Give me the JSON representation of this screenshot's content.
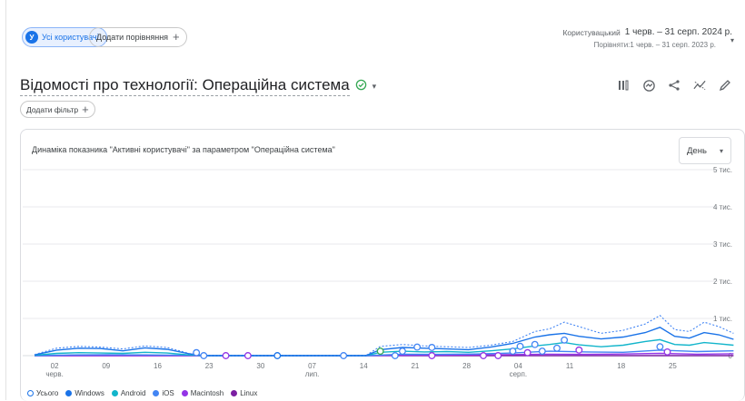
{
  "segment": {
    "letter": "У",
    "label": "Усі користувачі"
  },
  "compare": {
    "label": "Додати порівняння",
    "plus": "+"
  },
  "dates": {
    "preset": "Користувацький",
    "range": "1 черв. – 31 серп. 2024 р.",
    "compare_range": "Порівняти:1 черв. – 31 серп. 2023 р.",
    "caret": "▾"
  },
  "title": {
    "text": "Відомості про технології: Операційна система",
    "check": "⊘",
    "caret": "▾"
  },
  "toolbar": {
    "icons": [
      "columns-icon",
      "insights-icon",
      "share-icon",
      "trend-icon",
      "edit-icon"
    ]
  },
  "filter": {
    "label": "Додати фільтр",
    "plus": "+"
  },
  "card": {
    "title": "Динаміка показника \"Активні користувачі\" за параметром \"Операційна система\"",
    "period": "День",
    "period_caret": "▾"
  },
  "legend": [
    {
      "label": "Усього",
      "color": "#1a73e8",
      "hollow": true
    },
    {
      "label": "Windows",
      "color": "#1a73e8",
      "hollow": false
    },
    {
      "label": "Android",
      "color": "#12b5cb",
      "hollow": false
    },
    {
      "label": "iOS",
      "color": "#4285f4",
      "hollow": false
    },
    {
      "label": "Macintosh",
      "color": "#9334e6",
      "hollow": false
    },
    {
      "label": "Linux",
      "color": "#7b1fa2",
      "hollow": false
    }
  ],
  "chart_data": {
    "type": "line",
    "title": "Динаміка показника \"Активні користувачі\" за параметром \"Операційна система\"",
    "x_tick_labels": [
      {
        "day": 1,
        "label": "02",
        "sub": "черв."
      },
      {
        "day": 8,
        "label": "09",
        "sub": ""
      },
      {
        "day": 15,
        "label": "16",
        "sub": ""
      },
      {
        "day": 22,
        "label": "23",
        "sub": ""
      },
      {
        "day": 29,
        "label": "30",
        "sub": ""
      },
      {
        "day": 36,
        "label": "07",
        "sub": "лип."
      },
      {
        "day": 43,
        "label": "14",
        "sub": ""
      },
      {
        "day": 50,
        "label": "21",
        "sub": ""
      },
      {
        "day": 57,
        "label": "28",
        "sub": ""
      },
      {
        "day": 64,
        "label": "04",
        "sub": "серп."
      },
      {
        "day": 71,
        "label": "11",
        "sub": ""
      },
      {
        "day": 78,
        "label": "18",
        "sub": ""
      },
      {
        "day": 85,
        "label": "25",
        "sub": ""
      }
    ],
    "y_ticks": [
      {
        "value": 0,
        "label": "0"
      },
      {
        "value": 1000,
        "label": "1 тис."
      },
      {
        "value": 2000,
        "label": "2 тис."
      },
      {
        "value": 3000,
        "label": "3 тис."
      },
      {
        "value": 4000,
        "label": "4 тис."
      },
      {
        "value": 5000,
        "label": "5 тис."
      }
    ],
    "xlim": [
      0,
      91
    ],
    "ylim": [
      0,
      5000
    ],
    "grid": true,
    "legend_position": "bottom-left",
    "series": [
      {
        "name": "Усього",
        "color": "#4285f4",
        "dashed": true,
        "points": [
          [
            0,
            30
          ],
          [
            3,
            200
          ],
          [
            6,
            250
          ],
          [
            9,
            230
          ],
          [
            12,
            180
          ],
          [
            15,
            260
          ],
          [
            18,
            220
          ],
          [
            21,
            60
          ],
          [
            23,
            0
          ],
          [
            45,
            0
          ],
          [
            47,
            250
          ],
          [
            50,
            300
          ],
          [
            53,
            260
          ],
          [
            56,
            240
          ],
          [
            59,
            220
          ],
          [
            62,
            280
          ],
          [
            65,
            380
          ],
          [
            68,
            650
          ],
          [
            70,
            720
          ],
          [
            72,
            900
          ],
          [
            74,
            780
          ],
          [
            77,
            600
          ],
          [
            80,
            680
          ],
          [
            83,
            850
          ],
          [
            85,
            1080
          ],
          [
            87,
            700
          ],
          [
            89,
            650
          ],
          [
            91,
            900
          ],
          [
            93,
            780
          ],
          [
            95,
            600
          ]
        ]
      },
      {
        "name": "Windows",
        "color": "#1a73e8",
        "dashed": false,
        "points": [
          [
            0,
            20
          ],
          [
            3,
            150
          ],
          [
            6,
            200
          ],
          [
            9,
            190
          ],
          [
            12,
            130
          ],
          [
            15,
            210
          ],
          [
            18,
            170
          ],
          [
            21,
            50
          ],
          [
            23,
            0
          ],
          [
            45,
            0
          ],
          [
            47,
            160
          ],
          [
            50,
            220
          ],
          [
            53,
            200
          ],
          [
            56,
            180
          ],
          [
            59,
            160
          ],
          [
            62,
            230
          ],
          [
            65,
            330
          ],
          [
            68,
            500
          ],
          [
            70,
            560
          ],
          [
            72,
            600
          ],
          [
            74,
            520
          ],
          [
            77,
            450
          ],
          [
            80,
            500
          ],
          [
            83,
            620
          ],
          [
            85,
            760
          ],
          [
            87,
            520
          ],
          [
            89,
            470
          ],
          [
            91,
            620
          ],
          [
            93,
            560
          ],
          [
            95,
            440
          ]
        ]
      },
      {
        "name": "Android",
        "color": "#12b5cb",
        "dashed": false,
        "points": [
          [
            0,
            10
          ],
          [
            3,
            60
          ],
          [
            6,
            80
          ],
          [
            9,
            70
          ],
          [
            12,
            60
          ],
          [
            15,
            90
          ],
          [
            18,
            70
          ],
          [
            21,
            20
          ],
          [
            23,
            0
          ],
          [
            45,
            0
          ],
          [
            47,
            90
          ],
          [
            50,
            120
          ],
          [
            53,
            100
          ],
          [
            56,
            110
          ],
          [
            59,
            90
          ],
          [
            62,
            130
          ],
          [
            65,
            180
          ],
          [
            68,
            260
          ],
          [
            70,
            300
          ],
          [
            72,
            350
          ],
          [
            74,
            290
          ],
          [
            77,
            240
          ],
          [
            80,
            280
          ],
          [
            83,
            380
          ],
          [
            85,
            430
          ],
          [
            87,
            300
          ],
          [
            89,
            280
          ],
          [
            91,
            350
          ],
          [
            93,
            320
          ],
          [
            95,
            280
          ]
        ]
      },
      {
        "name": "iOS",
        "color": "#4285f4",
        "dashed": false,
        "points": [
          [
            0,
            0
          ],
          [
            5,
            20
          ],
          [
            10,
            25
          ],
          [
            15,
            20
          ],
          [
            21,
            10
          ],
          [
            23,
            0
          ],
          [
            45,
            0
          ],
          [
            50,
            40
          ],
          [
            55,
            35
          ],
          [
            60,
            45
          ],
          [
            65,
            70
          ],
          [
            70,
            120
          ],
          [
            75,
            100
          ],
          [
            80,
            90
          ],
          [
            85,
            150
          ],
          [
            90,
            110
          ],
          [
            95,
            130
          ]
        ]
      },
      {
        "name": "Macintosh",
        "color": "#9334e6",
        "dashed": false,
        "points": [
          [
            0,
            0
          ],
          [
            22,
            0
          ],
          [
            45,
            0
          ],
          [
            50,
            10
          ],
          [
            55,
            15
          ],
          [
            60,
            20
          ],
          [
            65,
            30
          ],
          [
            70,
            40
          ],
          [
            75,
            35
          ],
          [
            80,
            45
          ],
          [
            85,
            60
          ],
          [
            90,
            40
          ],
          [
            95,
            50
          ]
        ]
      },
      {
        "name": "Linux",
        "color": "#7b1fa2",
        "dashed": false,
        "points": [
          [
            0,
            0
          ],
          [
            95,
            0
          ]
        ]
      }
    ],
    "markers": [
      {
        "day": 22,
        "value": 80,
        "color": "#4285f4"
      },
      {
        "day": 23,
        "value": 0,
        "color": "#4285f4"
      },
      {
        "day": 26,
        "value": 0,
        "color": "#9334e6"
      },
      {
        "day": 29,
        "value": 0,
        "color": "#9334e6"
      },
      {
        "day": 33,
        "value": 0,
        "color": "#1a73e8"
      },
      {
        "day": 42,
        "value": 0,
        "color": "#4285f4"
      },
      {
        "day": 47,
        "value": 120,
        "color": "#34a853"
      },
      {
        "day": 49,
        "value": 0,
        "color": "#4285f4"
      },
      {
        "day": 50,
        "value": 120,
        "color": "#4285f4"
      },
      {
        "day": 52,
        "value": 230,
        "color": "#4285f4"
      },
      {
        "day": 54,
        "value": 220,
        "color": "#4285f4"
      },
      {
        "day": 54,
        "value": 0,
        "color": "#9334e6"
      },
      {
        "day": 61,
        "value": 0,
        "color": "#9334e6"
      },
      {
        "day": 63,
        "value": 0,
        "color": "#9334e6"
      },
      {
        "day": 65,
        "value": 120,
        "color": "#4285f4"
      },
      {
        "day": 66,
        "value": 250,
        "color": "#4285f4"
      },
      {
        "day": 67,
        "value": 80,
        "color": "#9334e6"
      },
      {
        "day": 68,
        "value": 300,
        "color": "#4285f4"
      },
      {
        "day": 69,
        "value": 120,
        "color": "#4285f4"
      },
      {
        "day": 71,
        "value": 200,
        "color": "#4285f4"
      },
      {
        "day": 72,
        "value": 420,
        "color": "#4285f4"
      },
      {
        "day": 74,
        "value": 150,
        "color": "#9334e6"
      },
      {
        "day": 85,
        "value": 240,
        "color": "#4285f4"
      },
      {
        "day": 86,
        "value": 100,
        "color": "#9334e6"
      }
    ]
  }
}
